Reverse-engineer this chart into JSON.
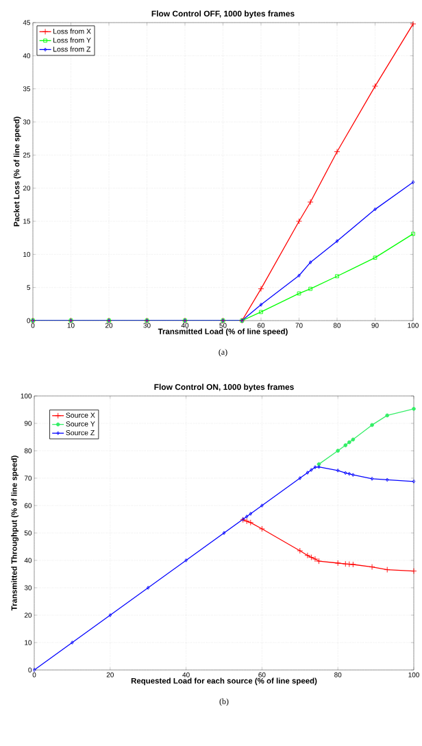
{
  "chart_data": [
    {
      "type": "line",
      "title": "Flow Control OFF, 1000 bytes frames",
      "xlabel": "Transmitted Load (% of line speed)",
      "ylabel": "Packet Loss (% of line speed)",
      "annotations": [
        "(a)"
      ],
      "x": [
        0,
        10,
        20,
        30,
        40,
        50,
        55,
        60,
        70,
        73,
        80,
        90,
        100
      ],
      "series": [
        {
          "name": "Loss from X",
          "color": "#ff0000",
          "marker": "cross",
          "values": [
            0,
            0,
            0,
            0,
            0,
            0,
            0,
            4.8,
            15,
            17.9,
            25.5,
            35.4,
            44.8
          ]
        },
        {
          "name": "Loss from Y",
          "color": "#00ff00",
          "marker": "square",
          "values": [
            0,
            0,
            0,
            0,
            0,
            0,
            0,
            1.3,
            4.1,
            4.8,
            6.7,
            9.5,
            13.1
          ]
        },
        {
          "name": "Loss from Z",
          "color": "#0000ff",
          "marker": "diamond",
          "values": [
            0,
            0,
            0,
            0,
            0,
            0,
            0,
            2.4,
            6.8,
            8.8,
            12,
            16.8,
            20.9
          ]
        }
      ],
      "xlim": [
        0,
        100
      ],
      "xticks": [
        0,
        10,
        20,
        30,
        40,
        50,
        60,
        70,
        80,
        90,
        100
      ],
      "ylim": [
        0,
        45
      ],
      "yticks": [
        0,
        5,
        10,
        15,
        20,
        25,
        30,
        35,
        40,
        45
      ],
      "grid": true,
      "legend": "top left",
      "line_style": "solid"
    },
    {
      "type": "line",
      "title": "Flow Control ON, 1000 bytes frames",
      "xlabel": "Requested Load for each source (% of line speed)",
      "ylabel": "Transmitted Throughput (% of line speed)",
      "annotations": [
        "(b)"
      ],
      "x": [
        0,
        10,
        20,
        30,
        40,
        50,
        55,
        56,
        57,
        60,
        70,
        72,
        73,
        74,
        75,
        80,
        82,
        83,
        84,
        89,
        93,
        100
      ],
      "series": [
        {
          "name": "Source X",
          "color": "#ff0000",
          "marker": "cross",
          "values": [
            null,
            null,
            null,
            null,
            null,
            null,
            54.8,
            54.3,
            53.8,
            51.5,
            43.5,
            41.8,
            41.1,
            40.5,
            39.7,
            39,
            38.7,
            38.6,
            38.5,
            37.6,
            36.6,
            36.1
          ]
        },
        {
          "name": "Source Y",
          "color": "#33ee66",
          "marker": "circle",
          "values": [
            null,
            null,
            null,
            null,
            null,
            null,
            null,
            null,
            null,
            null,
            null,
            null,
            null,
            null,
            75.1,
            80,
            82,
            83.1,
            84.1,
            89.4,
            92.9,
            95.3
          ]
        },
        {
          "name": "Source Z",
          "color": "#0000ff",
          "marker": "diamond",
          "values": [
            0,
            10,
            20,
            30,
            40,
            50,
            55,
            56,
            57,
            60,
            70,
            72,
            73,
            74,
            74.1,
            72.8,
            71.9,
            71.6,
            71.2,
            69.8,
            69.4,
            68.8
          ]
        }
      ],
      "xlim": [
        0,
        100
      ],
      "xticks": [
        0,
        20,
        40,
        60,
        80,
        100
      ],
      "ylim": [
        0,
        100
      ],
      "yticks": [
        0,
        10,
        20,
        30,
        40,
        50,
        60,
        70,
        80,
        90,
        100
      ],
      "grid": true,
      "legend": "top left",
      "line_style": "solid"
    }
  ]
}
